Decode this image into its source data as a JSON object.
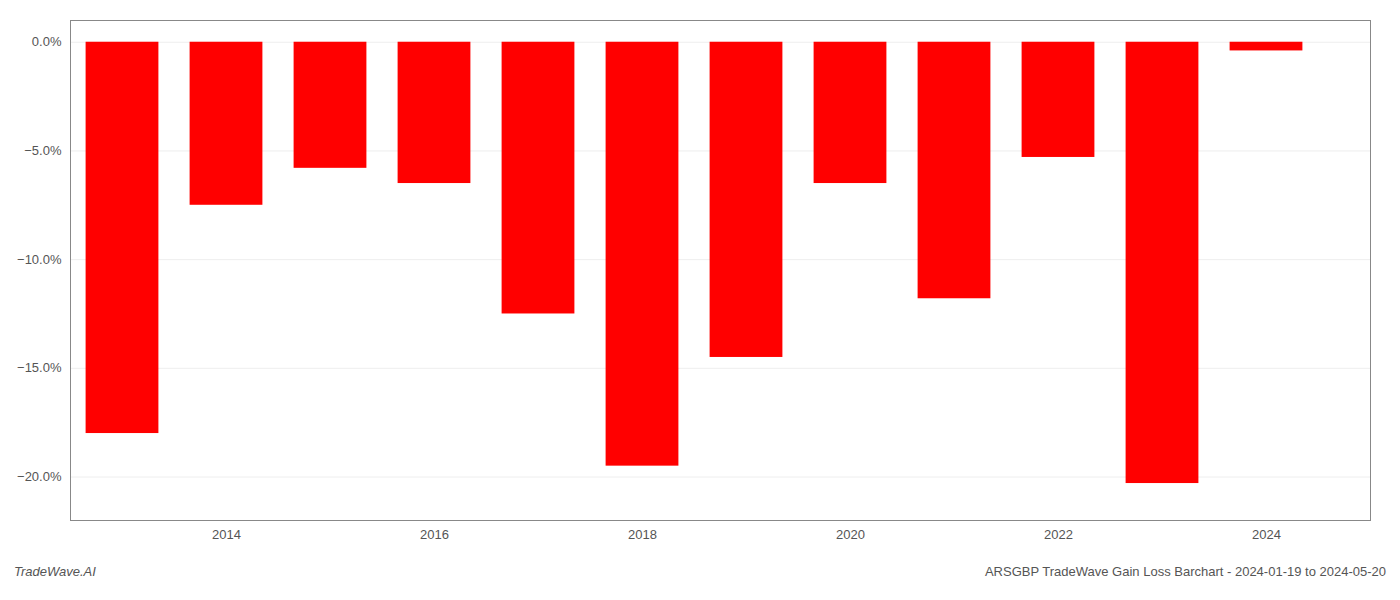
{
  "chart_data": {
    "type": "bar",
    "x": [
      2013,
      2014,
      2015,
      2016,
      2017,
      2018,
      2019,
      2020,
      2021,
      2022,
      2023,
      2024
    ],
    "values": [
      -18.0,
      -7.5,
      -5.8,
      -6.5,
      -12.5,
      -19.5,
      -14.5,
      -6.5,
      -11.8,
      -5.3,
      -20.3,
      -0.4
    ],
    "color": "#ff0000",
    "xlim": [
      2012.5,
      2025.0
    ],
    "xticks": [
      2014,
      2016,
      2018,
      2020,
      2022,
      2024
    ],
    "ylim": [
      -22,
      1.0
    ],
    "yticks": [
      {
        "value": 0.0,
        "label": "0.0%"
      },
      {
        "value": -5.0,
        "label": "−5.0%"
      },
      {
        "value": -10.0,
        "label": "−10.0%"
      },
      {
        "value": -15.0,
        "label": "−15.0%"
      },
      {
        "value": -20.0,
        "label": "−20.0%"
      }
    ],
    "grid": true,
    "annotations": [
      "TradeWave.AI",
      "ARSGBP TradeWave Gain Loss Barchart - 2024-01-19 to 2024-05-20"
    ]
  }
}
